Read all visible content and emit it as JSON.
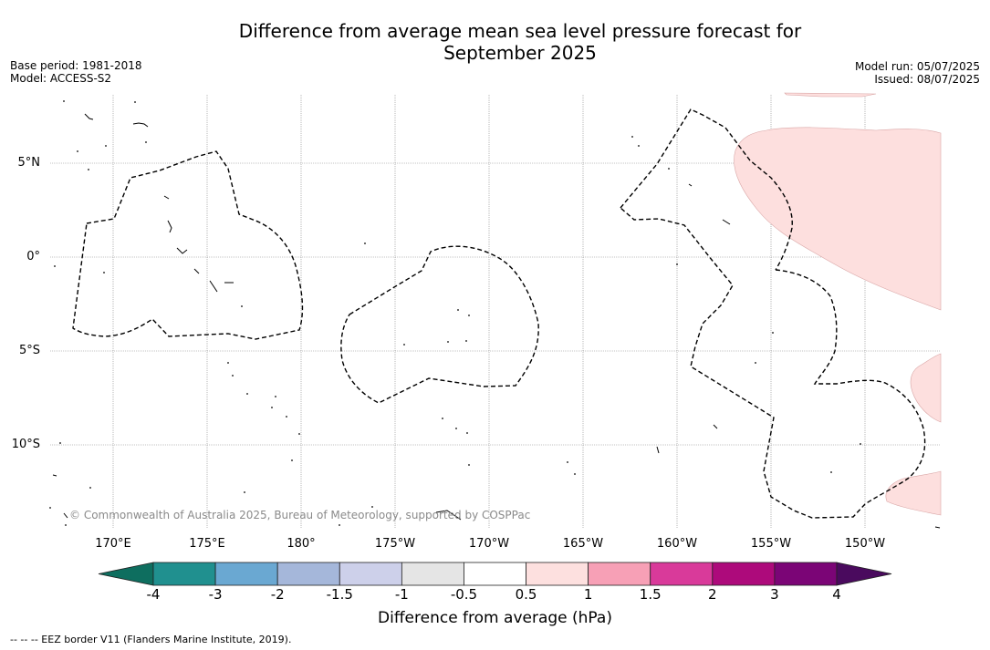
{
  "title_line1": "Difference from average mean sea level pressure forecast for",
  "title_line2": "September 2025",
  "base_period": "Base period: 1981-2018",
  "model": "Model: ACCESS-S2",
  "model_run": "Model run: 05/07/2025",
  "issued": "Issued: 08/07/2025",
  "copyright": "© Commonwealth of Australia 2025, Bureau of Meteorology, supported by COSPPac",
  "lat_labels": [
    "5°N",
    "0°",
    "5°S",
    "10°S"
  ],
  "lon_labels": [
    "170°E",
    "175°E",
    "180°",
    "175°W",
    "170°W",
    "165°W",
    "160°W",
    "155°W",
    "150°W"
  ],
  "colorbar": {
    "label": "Difference from average (hPa)",
    "ticks": [
      "-4",
      "-3",
      "-2",
      "-1.5",
      "-1",
      "-0.5",
      "0.5",
      "1",
      "1.5",
      "2",
      "3",
      "4"
    ],
    "colors": {
      "below_min": "#0e6e5f",
      "bins": [
        "#20908f",
        "#6aa8d2",
        "#a5b7da",
        "#cdd0ea",
        "#e5e5e5",
        "#ffffff",
        "#fde0df",
        "#f7a0b6",
        "#d93a9a",
        "#ad0a7b",
        "#7b0576"
      ],
      "above_max": "#4a0a5e"
    }
  },
  "anomaly_fill_color": "#fddfde",
  "footnote": "--  --  -- EEZ border V11 (Flanders Marine Institute, 2019)."
}
